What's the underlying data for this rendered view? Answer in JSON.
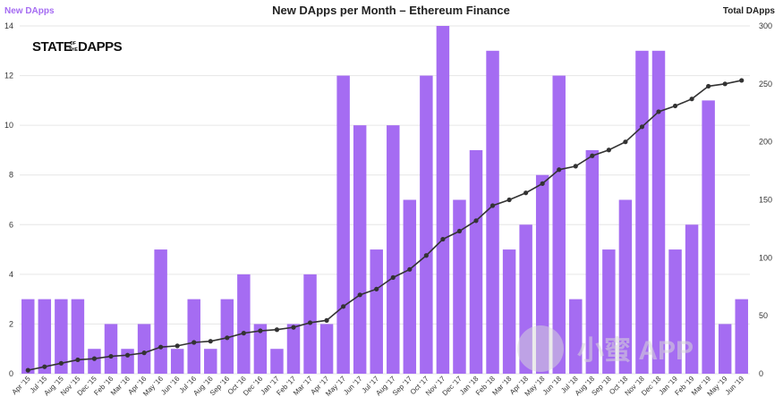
{
  "chart_data": {
    "type": "bar",
    "title": "New DApps per Month – Ethereum Finance",
    "left_axis_label": "New DApps",
    "right_axis_label": "Total DApps",
    "brand": {
      "main_1": "STATE",
      "of": "OF",
      "the": "THE",
      "main_2": "DAPPS"
    },
    "watermark": "小蜜 APP",
    "left_ylim": [
      0,
      14
    ],
    "left_ticks": [
      0,
      2,
      4,
      6,
      8,
      10,
      12,
      14
    ],
    "right_ylim": [
      0,
      300
    ],
    "right_ticks": [
      0,
      50,
      100,
      150,
      200,
      250,
      300
    ],
    "grid": true,
    "colors": {
      "bar": "#a56cf2",
      "line": "#333333",
      "left_label": "#a56cf2"
    },
    "categories": [
      "Apr '15",
      "Jul '15",
      "Aug '15",
      "Nov '15",
      "Dec '15",
      "Feb '16",
      "Mar '16",
      "Apr '16",
      "May '16",
      "Jun '16",
      "Jul '16",
      "Aug '16",
      "Sep '16",
      "Oct '16",
      "Dec '16",
      "Jan '17",
      "Feb '17",
      "Mar '17",
      "Apr '17",
      "May '17",
      "Jun '17",
      "Jul '17",
      "Aug '17",
      "Sep '17",
      "Oct '17",
      "Nov '17",
      "Dec '17",
      "Jan '18",
      "Feb '18",
      "Mar '18",
      "Apr '18",
      "May '18",
      "Jun '18",
      "Jul '18",
      "Aug '18",
      "Sep '18",
      "Oct '18",
      "Nov '18",
      "Dec '18",
      "Jan '19",
      "Feb '19",
      "Mar '19",
      "May '19",
      "Jun '19"
    ],
    "series": [
      {
        "name": "New DApps",
        "type": "bar",
        "axis": "left",
        "values": [
          3,
          3,
          3,
          3,
          1,
          2,
          1,
          2,
          5,
          1,
          3,
          1,
          3,
          4,
          2,
          1,
          2,
          4,
          2,
          12,
          10,
          5,
          10,
          7,
          12,
          14,
          7,
          9,
          13,
          5,
          6,
          8,
          12,
          3,
          9,
          5,
          7,
          13,
          13,
          5,
          6,
          11,
          2,
          3
        ]
      },
      {
        "name": "Total DApps",
        "type": "line",
        "axis": "right",
        "values": [
          3,
          6,
          9,
          12,
          13,
          15,
          16,
          18,
          23,
          24,
          27,
          28,
          31,
          35,
          37,
          38,
          40,
          44,
          46,
          58,
          68,
          73,
          83,
          90,
          102,
          116,
          123,
          132,
          145,
          150,
          156,
          164,
          176,
          179,
          188,
          193,
          200,
          213,
          226,
          231,
          237,
          248,
          250,
          253
        ]
      }
    ]
  }
}
